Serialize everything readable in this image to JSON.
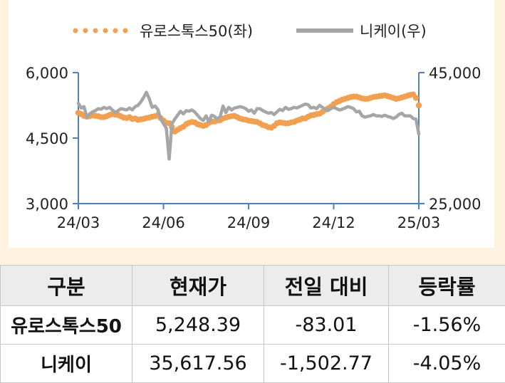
{
  "chart_data": {
    "type": "line",
    "series": [
      {
        "name": "유로스톡스50(좌)",
        "axis": "left",
        "style": "dotted",
        "color": "#f0a050",
        "x": [
          0,
          0.1,
          0.2,
          0.3,
          0.4,
          0.5,
          0.6,
          0.7,
          0.8,
          0.9,
          1,
          1.1,
          1.2,
          1.3,
          1.4,
          1.5,
          1.6,
          1.7,
          1.8,
          1.9,
          2,
          2.1,
          2.2,
          2.3,
          2.4,
          2.5,
          2.6,
          2.7,
          2.8,
          2.9,
          3,
          3.1,
          3.2,
          3.3,
          3.4,
          3.5,
          3.6,
          3.7,
          3.8,
          3.9,
          4,
          4.1,
          4.2,
          4.3,
          4.4,
          4.5,
          4.6,
          4.7,
          4.8,
          4.9,
          5,
          5.1,
          5.2,
          5.3,
          5.4,
          5.5,
          5.6,
          5.7,
          5.8,
          5.9,
          6,
          6.1,
          6.2,
          6.3,
          6.4,
          6.5,
          6.6,
          6.7,
          6.8,
          6.9,
          7,
          7.1,
          7.2,
          7.3,
          7.4,
          7.5,
          7.6,
          7.7,
          7.8,
          7.9,
          8,
          8.1,
          8.2,
          8.3,
          8.4,
          8.5,
          8.6,
          8.7,
          8.8,
          8.9,
          9,
          9.1,
          9.2,
          9.3,
          9.4,
          9.5,
          9.6,
          9.7,
          9.8,
          9.9,
          10,
          10.1,
          10.2,
          10.3,
          10.4,
          10.5,
          10.6,
          10.7,
          10.8,
          10.9,
          11,
          11.1,
          11.2,
          11.3,
          11.4,
          11.5,
          11.6,
          11.7,
          11.8,
          11.9,
          12
        ],
        "values": [
          5080,
          5050,
          5010,
          4990,
          5000,
          5020,
          5010,
          5000,
          4980,
          4980,
          5000,
          5030,
          5050,
          5040,
          5030,
          5000,
          4970,
          4960,
          4980,
          4940,
          4950,
          4920,
          4930,
          4940,
          4960,
          4970,
          4990,
          5000,
          5030,
          4960,
          4900,
          4850,
          4840,
          4750,
          4650,
          4690,
          4730,
          4760,
          4820,
          4850,
          4870,
          4860,
          4820,
          4800,
          4780,
          4800,
          4850,
          4880,
          4880,
          4900,
          4910,
          4950,
          4970,
          4990,
          5000,
          5010,
          4980,
          4950,
          4930,
          4920,
          4900,
          4890,
          4880,
          4870,
          4840,
          4800,
          4780,
          4750,
          4740,
          4780,
          4840,
          4860,
          4850,
          4840,
          4840,
          4860,
          4870,
          4900,
          4920,
          4950,
          4950,
          4990,
          5020,
          5030,
          5050,
          5060,
          5100,
          5150,
          5180,
          5220,
          5280,
          5320,
          5350,
          5380,
          5400,
          5420,
          5440,
          5450,
          5450,
          5430,
          5410,
          5400,
          5400,
          5420,
          5440,
          5450,
          5460,
          5470,
          5480,
          5460,
          5440,
          5420,
          5400,
          5410,
          5430,
          5450,
          5470,
          5490,
          5500,
          5420,
          5248.39
        ]
      },
      {
        "name": "니케이(우)",
        "axis": "right",
        "style": "solid",
        "color": "#a6a6a6",
        "x": [
          0,
          0.1,
          0.2,
          0.3,
          0.4,
          0.5,
          0.6,
          0.7,
          0.8,
          0.9,
          1,
          1.1,
          1.2,
          1.3,
          1.4,
          1.5,
          1.6,
          1.7,
          1.8,
          1.9,
          2,
          2.1,
          2.2,
          2.3,
          2.4,
          2.5,
          2.6,
          2.7,
          2.8,
          2.9,
          3,
          3.1,
          3.2,
          3.3,
          3.4,
          3.5,
          3.6,
          3.7,
          3.8,
          3.9,
          4,
          4.1,
          4.2,
          4.3,
          4.4,
          4.5,
          4.6,
          4.7,
          4.8,
          4.9,
          5,
          5.1,
          5.2,
          5.3,
          5.4,
          5.5,
          5.6,
          5.7,
          5.8,
          5.9,
          6,
          6.1,
          6.2,
          6.3,
          6.4,
          6.5,
          6.6,
          6.7,
          6.8,
          6.9,
          7,
          7.1,
          7.2,
          7.3,
          7.4,
          7.5,
          7.6,
          7.7,
          7.8,
          7.9,
          8,
          8.1,
          8.2,
          8.3,
          8.4,
          8.5,
          8.6,
          8.7,
          8.8,
          8.9,
          9,
          9.1,
          9.2,
          9.3,
          9.4,
          9.5,
          9.6,
          9.7,
          9.8,
          9.9,
          10,
          10.1,
          10.2,
          10.3,
          10.4,
          10.5,
          10.6,
          10.7,
          10.8,
          10.9,
          11,
          11.1,
          11.2,
          11.3,
          11.4,
          11.5,
          11.6,
          11.7,
          11.8,
          11.9,
          12
        ],
        "values": [
          40300,
          39600,
          39800,
          38200,
          38700,
          39000,
          39200,
          39500,
          39400,
          39700,
          39500,
          39700,
          39300,
          38900,
          39200,
          39500,
          39400,
          39300,
          39600,
          39300,
          39800,
          40000,
          40500,
          41200,
          42000,
          41000,
          39700,
          39900,
          39400,
          38000,
          37200,
          36500,
          31800,
          37200,
          37900,
          38500,
          39100,
          38700,
          39200,
          39100,
          39300,
          39000,
          38500,
          38000,
          37700,
          38400,
          37500,
          38500,
          38300,
          37900,
          38300,
          39900,
          38900,
          39700,
          39300,
          39600,
          39700,
          39800,
          39700,
          39500,
          39100,
          39300,
          38800,
          39500,
          39500,
          39200,
          39000,
          38800,
          38900,
          38600,
          39000,
          39400,
          39200,
          39700,
          39400,
          39500,
          39700,
          39600,
          39800,
          40000,
          40200,
          40100,
          39600,
          39700,
          39500,
          40000,
          39700,
          39400,
          39200,
          39500,
          39700,
          39500,
          39300,
          39400,
          39600,
          39800,
          39700,
          39500,
          39000,
          39100,
          38400,
          38200,
          38300,
          38400,
          38600,
          38400,
          38400,
          38300,
          38500,
          38300,
          38200,
          38000,
          38200,
          38600,
          38800,
          38400,
          38400,
          38400,
          38000,
          37900,
          35617.56
        ]
      }
    ],
    "x_ticks": [
      {
        "x": 0,
        "label": "24/03"
      },
      {
        "x": 3,
        "label": "24/06"
      },
      {
        "x": 6,
        "label": "24/09"
      },
      {
        "x": 9,
        "label": "24/12"
      },
      {
        "x": 12,
        "label": "25/03"
      }
    ],
    "xlim": [
      0,
      12
    ],
    "y_left": {
      "lim": [
        3000,
        6000
      ],
      "ticks": [
        6000,
        4500,
        3000
      ],
      "tick_labels": [
        "6,000",
        "4,500",
        "3,000"
      ]
    },
    "y_right": {
      "lim": [
        25000,
        45000
      ],
      "ticks": [
        45000,
        25000
      ],
      "tick_labels": [
        "45,000",
        "25,000"
      ]
    },
    "axis_color": "#4f81bd",
    "grid": false,
    "legend_position": "top-center"
  },
  "table": {
    "headers": [
      "구분",
      "현재가",
      "전일 대비",
      "등락률"
    ],
    "rows": [
      {
        "name": "유로스톡스50",
        "price": "5,248.39",
        "change": "-83.01",
        "rate": "-1.56%"
      },
      {
        "name": "니케이",
        "price": "35,617.56",
        "change": "-1,502.77",
        "rate": "-4.05%"
      }
    ]
  }
}
